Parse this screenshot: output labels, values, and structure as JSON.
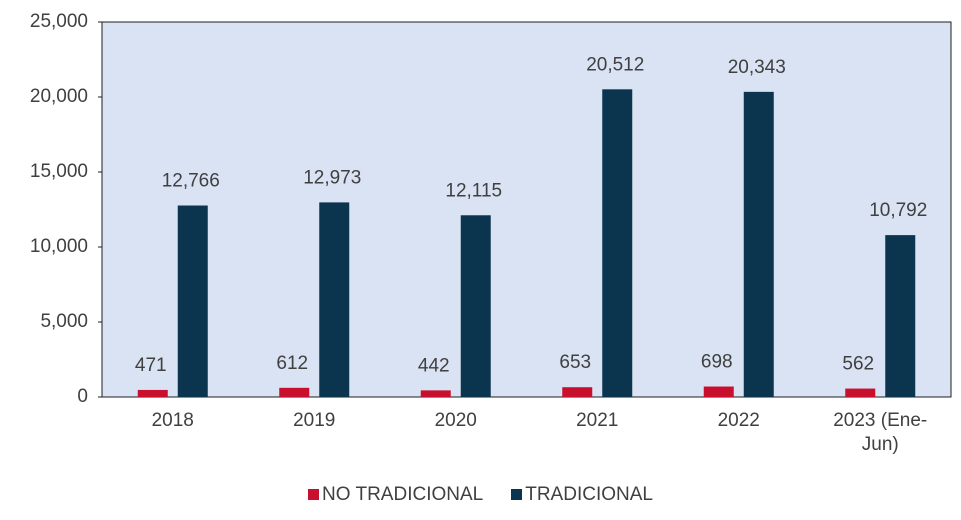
{
  "chart_data": {
    "type": "bar",
    "categories": [
      "2018",
      "2019",
      "2020",
      "2021",
      "2022",
      "2023 (Ene-Jun)"
    ],
    "series": [
      {
        "name": "NO TRADICIONAL",
        "color": "#c8102e",
        "values": [
          471,
          612,
          442,
          653,
          698,
          562
        ],
        "value_labels": [
          "471",
          "612",
          "442",
          "653",
          "698",
          "562"
        ]
      },
      {
        "name": "TRADICIONAL",
        "color": "#0b344f",
        "values": [
          12766,
          12973,
          12115,
          20512,
          20343,
          10792
        ],
        "value_labels": [
          "12,766",
          "12,973",
          "12,115",
          "20,512",
          "20,343",
          "10,792"
        ]
      }
    ],
    "ylim": [
      0,
      25000
    ],
    "yticks": [
      0,
      {
        "value": 5000,
        "label": "5,000"
      },
      {
        "value": 10000,
        "label": "10,000"
      },
      {
        "value": 15000,
        "label": "15,000"
      },
      {
        "value": 20000,
        "label": "20,000"
      },
      {
        "value": 25000,
        "label": "25,000"
      }
    ],
    "legend": "bottom"
  }
}
